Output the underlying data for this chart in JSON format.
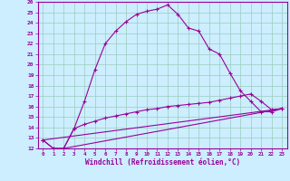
{
  "xlabel": "Windchill (Refroidissement éolien,°C)",
  "bg_color": "#cceeff",
  "line_color": "#990099",
  "grid_color": "#99ccbb",
  "xlim": [
    -0.5,
    23.5
  ],
  "ylim": [
    12,
    26
  ],
  "xticks": [
    0,
    1,
    2,
    3,
    4,
    5,
    6,
    7,
    8,
    9,
    10,
    11,
    12,
    13,
    14,
    15,
    16,
    17,
    18,
    19,
    20,
    21,
    22,
    23
  ],
  "yticks": [
    12,
    13,
    14,
    15,
    16,
    17,
    18,
    19,
    20,
    21,
    22,
    23,
    24,
    25,
    26
  ],
  "line1_x": [
    0,
    1,
    2,
    3,
    4,
    5,
    6,
    7,
    8,
    9,
    10,
    11,
    12,
    13,
    14,
    15,
    16,
    17,
    18,
    19,
    20,
    21,
    22,
    23
  ],
  "line1_y": [
    12.8,
    12.0,
    12.0,
    13.9,
    16.5,
    19.5,
    22.0,
    23.2,
    24.1,
    24.8,
    25.1,
    25.3,
    25.7,
    24.8,
    23.5,
    23.2,
    21.5,
    21.0,
    19.2,
    17.5,
    16.5,
    15.5,
    15.5,
    15.8
  ],
  "line2_x": [
    0,
    1,
    2,
    3,
    4,
    5,
    6,
    7,
    8,
    9,
    10,
    11,
    12,
    13,
    14,
    15,
    16,
    17,
    18,
    19,
    20,
    21,
    22,
    23
  ],
  "line2_y": [
    12.8,
    12.0,
    12.0,
    13.9,
    14.3,
    14.6,
    14.9,
    15.1,
    15.3,
    15.5,
    15.7,
    15.8,
    16.0,
    16.1,
    16.2,
    16.3,
    16.4,
    16.6,
    16.8,
    17.0,
    17.2,
    16.5,
    15.7,
    15.8
  ],
  "line3_x": [
    0,
    23
  ],
  "line3_y": [
    12.8,
    15.8
  ],
  "line4_x": [
    2,
    23
  ],
  "line4_y": [
    12.0,
    15.8
  ]
}
